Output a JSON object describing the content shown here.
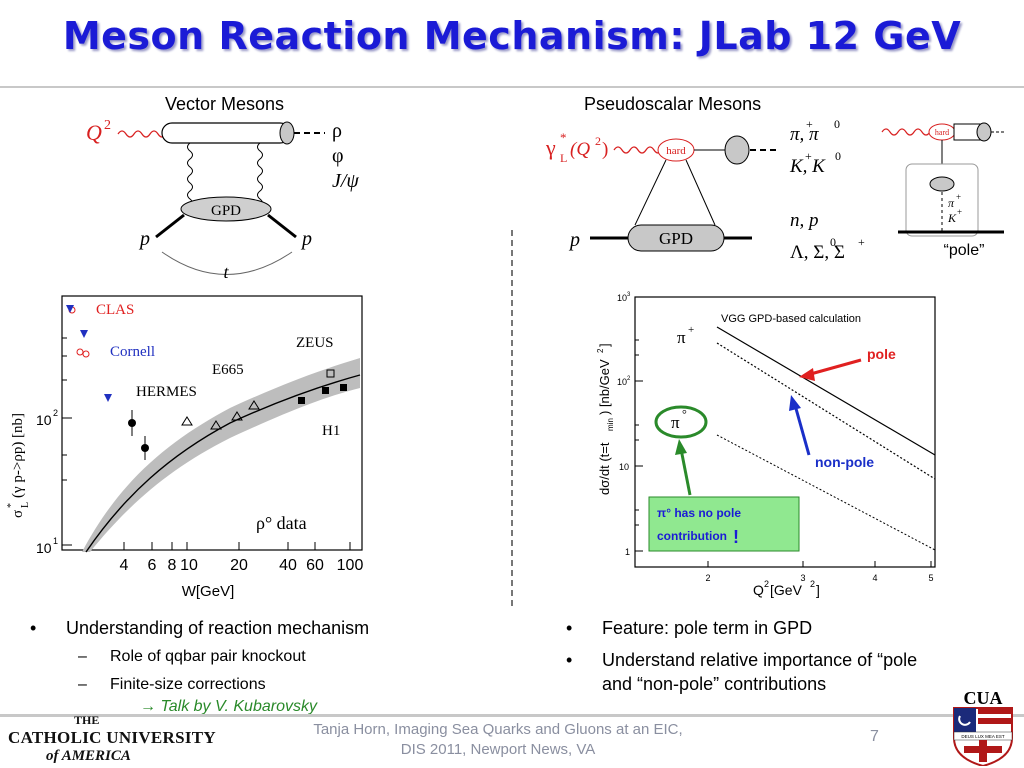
{
  "title": "Meson Reaction Mechanism: JLab 12 GeV",
  "vector": {
    "heading": "Vector Mesons",
    "Q2": "Q",
    "Q2_exp": "2",
    "gpd": "GPD",
    "p_left": "p",
    "p_right": "p",
    "t": "t",
    "mesons": [
      "ρ",
      "φ",
      "J/ψ"
    ]
  },
  "pseudo": {
    "heading": "Pseudoscalar Mesons",
    "gamma": "γ",
    "gamma_sup": "*",
    "gamma_sub": "L",
    "gamma_arg": "(Q",
    "gamma_arg_exp": "2",
    "gamma_arg_close": ")",
    "hard": "hard",
    "gpd": "GPD",
    "p": "p",
    "mesons_line1": "π, π",
    "pi_plus": "+",
    "pi_zero": "0",
    "mesons_line2": "K, K",
    "k_plus": "+",
    "k_zero": "0",
    "baryons_line1": "n,  p",
    "baryons_line2": "Λ, Σ, Σ",
    "sigma_zero": "0",
    "sigma_plus": "+",
    "pole_diagram_hard": "hard",
    "pole_pi": "π",
    "pole_pi_plus": "+",
    "pole_k": "K",
    "pole_k_plus": "+",
    "pole_label": "“pole”"
  },
  "left_chart": {
    "ylabel": "σ",
    "ylabel_sub": "L",
    "ylabel_sup": "*",
    "ylabel_rest": "(γ p->ρp)  [nb]",
    "xlabel": "W[GeV]",
    "x_ticks": [
      "4",
      "6",
      "8",
      "10",
      "20",
      "40",
      "60",
      "100"
    ],
    "y_ticks": [
      "10",
      "10"
    ],
    "y_tick_exps": [
      "2",
      "1"
    ],
    "labels": {
      "clas": "CLAS",
      "cornell": "Cornell",
      "hermes": "HERMES",
      "e665": "E665",
      "zeus": "ZEUS",
      "h1": "H1"
    },
    "data_label": "ρ° data",
    "colors": {
      "clas": "#e02020",
      "cornell": "#2030c0",
      "band": "#bdbdbd"
    }
  },
  "right_chart": {
    "ylabel_parts": [
      "dσ/dt (t=t",
      "min",
      ") [nb/GeV",
      "2",
      "]"
    ],
    "xlabel": "Q",
    "xlabel_exp": "2",
    "xlabel_rest": " [GeV",
    "xlabel_exp2": "2",
    "xlabel_close": "]",
    "x_ticks": [
      "2",
      "3",
      "4",
      "5"
    ],
    "y_ticks": [
      "10",
      "10",
      "10",
      "1"
    ],
    "y_tick_exps": [
      "3",
      "2",
      "",
      ""
    ],
    "note": "VGG GPD-based calculation",
    "pi_plus": "π",
    "pi_plus_sup": "+",
    "pi_zero": "π",
    "pi_zero_sup": "°",
    "pole": "pole",
    "non_pole": "non-pole",
    "box_line1": "π° has no pole",
    "box_line2": "contribution",
    "box_excl": "!",
    "colors": {
      "pole_arrow": "#e02020",
      "nonpole_arrow": "#1a2fc8",
      "green": "#2a8a2a",
      "box_fill": "#90e890"
    }
  },
  "bullets_left": {
    "main": "Understanding of  reaction mechanism",
    "sub1": "Role of qqbar pair knockout",
    "sub2": "Finite-size corrections",
    "talk": "→ Talk by V. Kubarovsky"
  },
  "bullets_right": {
    "b1": "Feature: pole term in GPD",
    "b2_line1": "Understand relative importance of “pole",
    "b2_line2": "and “non-pole” contributions"
  },
  "footer": {
    "line1": "Tanja Horn, Imaging Sea Quarks and Gluons at an EIC,",
    "line2": "DIS 2011, Newport News, VA",
    "page": "7",
    "logo_the": "THE",
    "logo_catholic": "CATHOLIC UNIVERSITY",
    "logo_of": "of AMERICA",
    "crest_text": "CUA",
    "crest_motto": "DEUS LUX MEA EST"
  }
}
